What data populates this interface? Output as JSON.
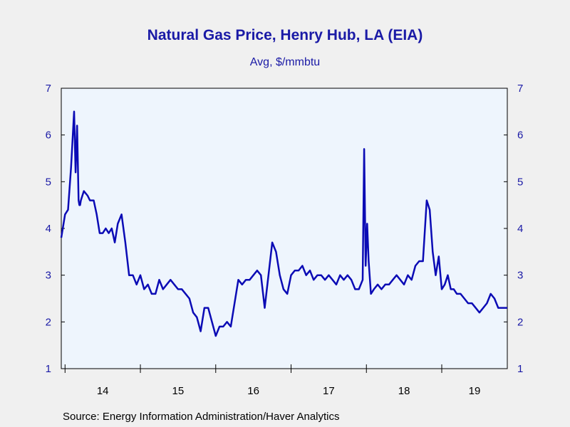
{
  "chart_data": {
    "type": "line",
    "title": "Natural Gas Price, Henry Hub, LA (EIA)",
    "subtitle": "Avg, $/mmbtu",
    "source": "Source:  Energy Information Administration/Haver Analytics",
    "ylim": [
      1,
      7
    ],
    "y_ticks": [
      1,
      2,
      3,
      4,
      5,
      6,
      7
    ],
    "x_tick_labels": [
      "14",
      "15",
      "16",
      "17",
      "18",
      "19"
    ],
    "xlim": [
      2013.95,
      2019.87
    ],
    "grid": false,
    "line_color": "#0b0bb5",
    "plot_bg": "#eef5fd",
    "series": [
      {
        "x": [
          2013.95,
          2014.0,
          2014.04,
          2014.08,
          2014.12,
          2014.14,
          2014.16,
          2014.18,
          2014.19,
          2014.2,
          2014.21,
          2014.23,
          2014.25,
          2014.3,
          2014.33,
          2014.38,
          2014.42,
          2014.46,
          2014.5,
          2014.54,
          2014.58,
          2014.62,
          2014.66,
          2014.7,
          2014.75,
          2014.8,
          2014.85,
          2014.9,
          2014.95,
          2015.0,
          2015.05,
          2015.1,
          2015.15,
          2015.2,
          2015.25,
          2015.3,
          2015.35,
          2015.4,
          2015.45,
          2015.5,
          2015.55,
          2015.6,
          2015.65,
          2015.7,
          2015.75,
          2015.8,
          2015.85,
          2015.9,
          2015.95,
          2016.0,
          2016.05,
          2016.1,
          2016.15,
          2016.2,
          2016.25,
          2016.3,
          2016.35,
          2016.4,
          2016.45,
          2016.5,
          2016.55,
          2016.6,
          2016.65,
          2016.7,
          2016.75,
          2016.8,
          2016.85,
          2016.9,
          2016.95,
          2017.0,
          2017.05,
          2017.1,
          2017.15,
          2017.2,
          2017.25,
          2017.3,
          2017.35,
          2017.4,
          2017.45,
          2017.5,
          2017.55,
          2017.6,
          2017.65,
          2017.7,
          2017.75,
          2017.8,
          2017.85,
          2017.9,
          2017.95,
          2017.97,
          2017.99,
          2018.01,
          2018.03,
          2018.06,
          2018.1,
          2018.15,
          2018.2,
          2018.25,
          2018.3,
          2018.35,
          2018.4,
          2018.45,
          2018.5,
          2018.55,
          2018.6,
          2018.65,
          2018.7,
          2018.75,
          2018.8,
          2018.84,
          2018.88,
          2018.92,
          2018.96,
          2019.0,
          2019.04,
          2019.08,
          2019.12,
          2019.16,
          2019.2,
          2019.25,
          2019.3,
          2019.35,
          2019.4,
          2019.45,
          2019.5,
          2019.55,
          2019.6,
          2019.65,
          2019.7,
          2019.75,
          2019.8,
          2019.87
        ],
        "y": [
          3.8,
          4.3,
          4.4,
          5.3,
          6.5,
          5.2,
          6.2,
          4.6,
          4.5,
          4.5,
          4.6,
          4.7,
          4.8,
          4.7,
          4.6,
          4.6,
          4.3,
          3.9,
          3.9,
          4.0,
          3.9,
          4.0,
          3.7,
          4.1,
          4.3,
          3.7,
          3.0,
          3.0,
          2.8,
          3.0,
          2.7,
          2.8,
          2.6,
          2.6,
          2.9,
          2.7,
          2.8,
          2.9,
          2.8,
          2.7,
          2.7,
          2.6,
          2.5,
          2.2,
          2.1,
          1.8,
          2.3,
          2.3,
          2.0,
          1.7,
          1.9,
          1.9,
          2.0,
          1.9,
          2.4,
          2.9,
          2.8,
          2.9,
          2.9,
          3.0,
          3.1,
          3.0,
          2.3,
          3.0,
          3.7,
          3.5,
          3.0,
          2.7,
          2.6,
          3.0,
          3.1,
          3.1,
          3.2,
          3.0,
          3.1,
          2.9,
          3.0,
          3.0,
          2.9,
          3.0,
          2.9,
          2.8,
          3.0,
          2.9,
          3.0,
          2.9,
          2.7,
          2.7,
          2.9,
          5.7,
          3.2,
          4.1,
          3.3,
          2.6,
          2.7,
          2.8,
          2.7,
          2.8,
          2.8,
          2.9,
          3.0,
          2.9,
          2.8,
          3.0,
          2.9,
          3.2,
          3.3,
          3.3,
          4.6,
          4.4,
          3.5,
          3.0,
          3.4,
          2.7,
          2.8,
          3.0,
          2.7,
          2.7,
          2.6,
          2.6,
          2.5,
          2.4,
          2.4,
          2.3,
          2.2,
          2.3,
          2.4,
          2.6,
          2.5,
          2.3,
          2.3,
          2.3
        ]
      }
    ]
  }
}
